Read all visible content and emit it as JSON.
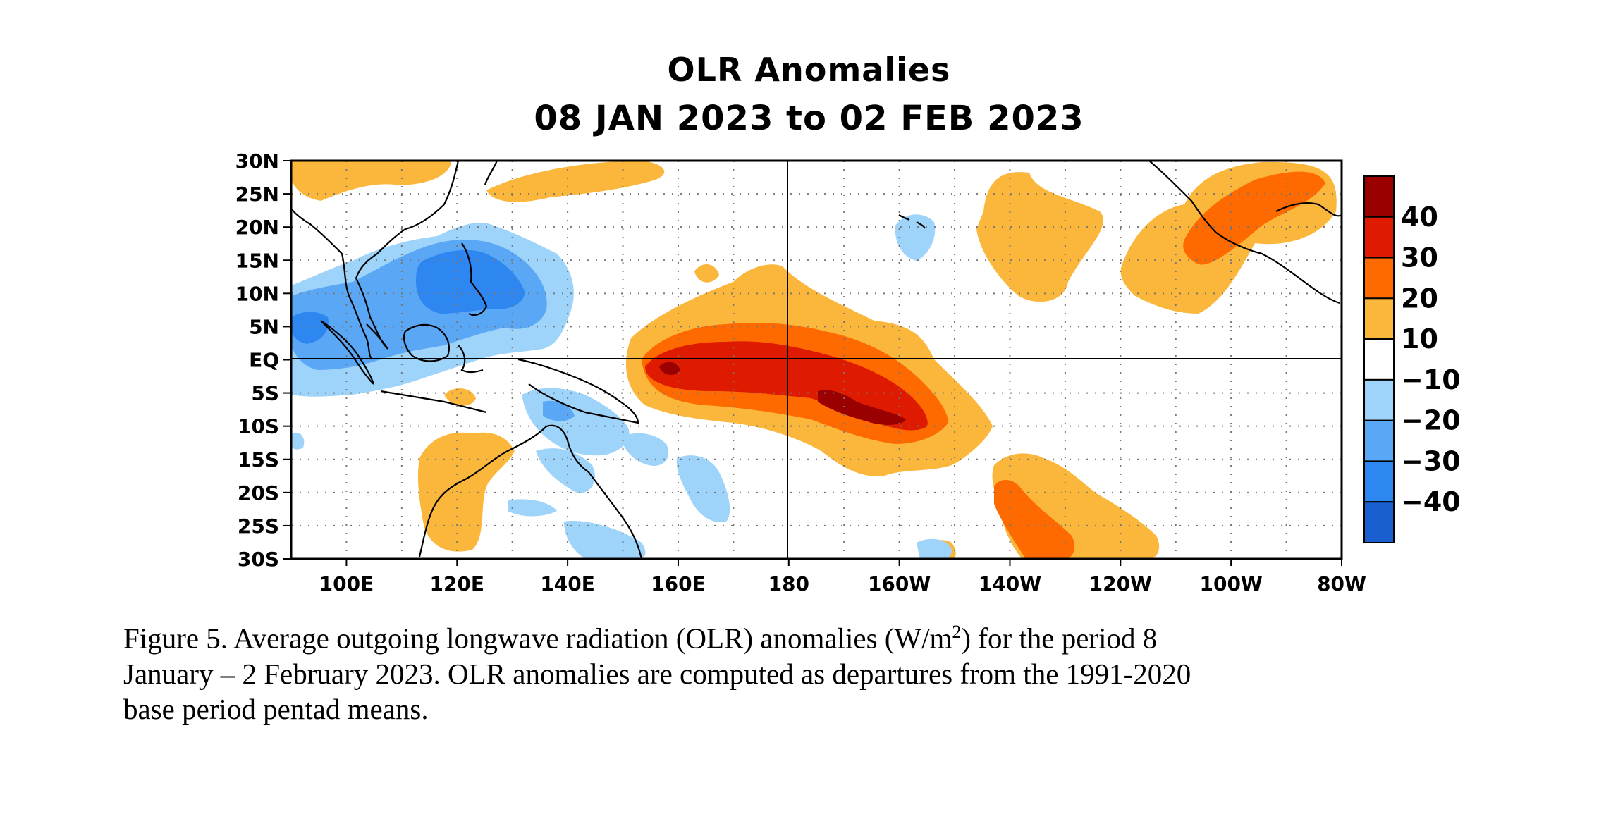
{
  "title_line1": "OLR Anomalies",
  "title_line2": "08 JAN 2023 to 02 FEB 2023",
  "map": {
    "lat_labels": [
      "30N",
      "25N",
      "20N",
      "15N",
      "10N",
      "5N",
      "EQ",
      "5S",
      "10S",
      "15S",
      "20S",
      "25S",
      "30S"
    ],
    "lon_labels": [
      "100E",
      "120E",
      "140E",
      "160E",
      "180",
      "160W",
      "140W",
      "120W",
      "100W",
      "80W"
    ],
    "lat_range": [
      -30,
      30
    ],
    "lon_range_deg_east": [
      90,
      280
    ],
    "gridlines": "dotted"
  },
  "legend": {
    "labels": [
      "40",
      "30",
      "20",
      "10",
      "−10",
      "−20",
      "−30",
      "−40"
    ],
    "colors": [
      "#9b0000",
      "#de1a00",
      "#ff6a00",
      "#fbb63c",
      "#ffffff",
      "#9ed3fa",
      "#5aa8f5",
      "#2e86f0",
      "#1a5fd0"
    ]
  },
  "anomaly_colors": {
    "pos10": "#fbb63c",
    "pos20": "#ff6a00",
    "pos30": "#de1a00",
    "pos40": "#9b0000",
    "neg10": "#9ed3fa",
    "neg20": "#5aa8f5",
    "neg30": "#2e86f0"
  },
  "caption": {
    "line1_pre": "Figure 5. Average outgoing longwave radiation (OLR) anomalies (W/m",
    "line1_sup": "2",
    "line1_post": ") for the period 8",
    "line2": "January – 2 February 2023.  OLR anomalies are computed as departures from the 1991-2020",
    "line3": "base period pentad means."
  }
}
